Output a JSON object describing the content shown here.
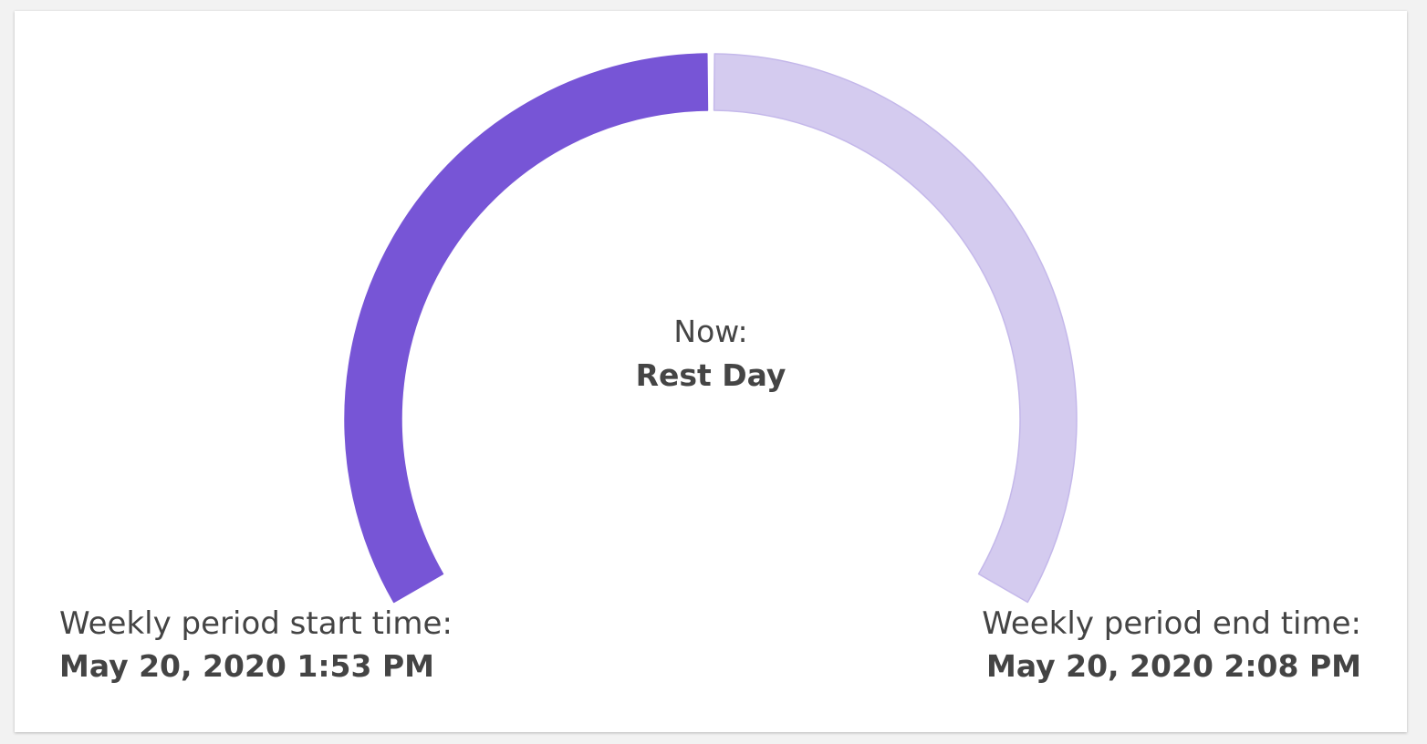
{
  "gauge": {
    "progress": 0.5,
    "filled_color": "#7755d6",
    "track_color": "#d4cbef",
    "track_border_color": "#c4b8ea"
  },
  "now": {
    "caption": "Now:",
    "value": "Rest Day"
  },
  "period_start": {
    "caption": "Weekly period start time:",
    "value": "May 20, 2020 1:53 PM"
  },
  "period_end": {
    "caption": "Weekly period end time:",
    "value": "May 20, 2020 2:08 PM"
  }
}
